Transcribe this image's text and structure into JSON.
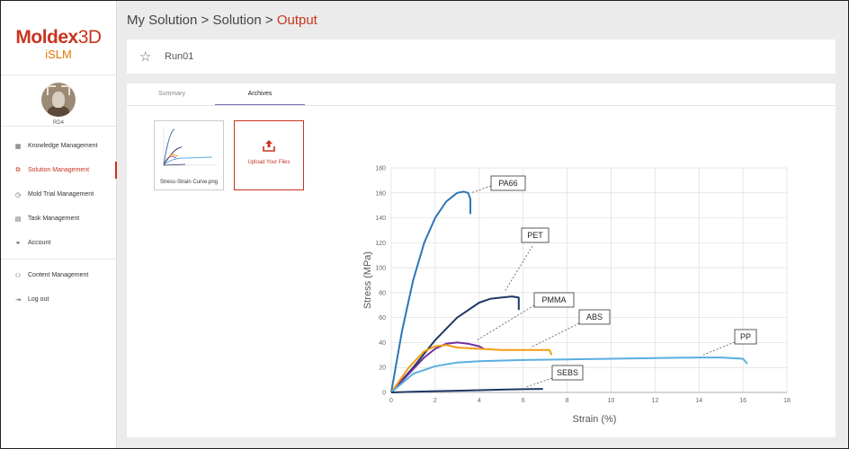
{
  "brand": {
    "name": "Moldex",
    "name_suffix": "3D",
    "product": "iSLM"
  },
  "user": {
    "name": "RD4"
  },
  "sidebar": {
    "items": [
      {
        "label": "Knowledge Management",
        "icon": "grid-icon"
      },
      {
        "label": "Solution Management",
        "icon": "copy-icon",
        "active": true
      },
      {
        "label": "Mold Trial Management",
        "icon": "clock-icon"
      },
      {
        "label": "Task Management",
        "icon": "clipboard-icon"
      },
      {
        "label": "Account",
        "icon": "person-icon"
      }
    ],
    "items2": [
      {
        "label": "Content Management",
        "icon": "people-icon"
      },
      {
        "label": "Log out",
        "icon": "logout-icon"
      }
    ]
  },
  "breadcrumb": {
    "part1": "My Solution",
    "sep": ">",
    "part2": "Solution",
    "current": "Output"
  },
  "run": {
    "name": "Run01"
  },
  "tabs": [
    {
      "label": "Summary"
    },
    {
      "label": "Archives",
      "active": true
    }
  ],
  "files": [
    {
      "name": "Stress-Strain Curve.png"
    }
  ],
  "upload": {
    "label": "Upload Your Files"
  },
  "colors": {
    "accent": "#c8341f",
    "brand_orange": "#e07b00",
    "tab_underline": "#7b6db0"
  },
  "chart_data": {
    "type": "line",
    "xlabel": "Strain (%)",
    "ylabel": "Stress (MPa)",
    "xlim": [
      0,
      18
    ],
    "ylim": [
      0,
      180
    ],
    "xticks": [
      0,
      2,
      4,
      6,
      8,
      10,
      12,
      14,
      16,
      18
    ],
    "yticks": [
      0,
      20,
      40,
      60,
      80,
      100,
      120,
      140,
      160,
      180
    ],
    "grid": true,
    "series": [
      {
        "name": "PA66",
        "color": "#2e75b6",
        "x": [
          0,
          0.5,
          1,
          1.5,
          2,
          2.5,
          3,
          3.3,
          3.5,
          3.6,
          3.6
        ],
        "y": [
          0,
          50,
          90,
          120,
          140,
          153,
          160,
          161,
          160,
          155,
          143
        ]
      },
      {
        "name": "PET",
        "color": "#1f3864",
        "x": [
          0,
          1,
          2,
          3,
          4,
          4.5,
          5,
          5.5,
          5.8,
          5.8
        ],
        "y": [
          0,
          20,
          42,
          60,
          72,
          75,
          76,
          77,
          76,
          66
        ]
      },
      {
        "name": "PMMA",
        "color": "#7030a0",
        "x": [
          0,
          0.8,
          1.5,
          2,
          2.5,
          3,
          3.5,
          4,
          4.2
        ],
        "y": [
          0,
          15,
          28,
          35,
          39,
          40,
          39,
          37,
          35
        ]
      },
      {
        "name": "ABS",
        "color": "#f39c12",
        "x": [
          0,
          0.8,
          1.5,
          2,
          2.5,
          3,
          4,
          5,
          6,
          7.2,
          7.3
        ],
        "y": [
          0,
          20,
          33,
          37,
          38,
          36,
          35,
          34,
          34,
          34,
          30
        ]
      },
      {
        "name": "PP",
        "color": "#5aaee0",
        "x": [
          0,
          1,
          2,
          3,
          4,
          6,
          8,
          10,
          12,
          14,
          15,
          16,
          16.2
        ],
        "y": [
          0,
          15,
          21,
          24,
          25,
          26,
          26.5,
          27,
          27.5,
          28,
          28,
          27,
          23
        ]
      },
      {
        "name": "SEBS",
        "color": "#1f3864",
        "x": [
          0,
          1,
          2,
          3,
          4,
          5,
          6,
          6.9
        ],
        "y": [
          0,
          0.6,
          1,
          1.4,
          1.8,
          2.2,
          2.6,
          2.8
        ]
      }
    ],
    "annotations": [
      {
        "text": "PA66"
      },
      {
        "text": "PET"
      },
      {
        "text": "PMMA"
      },
      {
        "text": "ABS"
      },
      {
        "text": "PP"
      },
      {
        "text": "SEBS"
      }
    ]
  }
}
